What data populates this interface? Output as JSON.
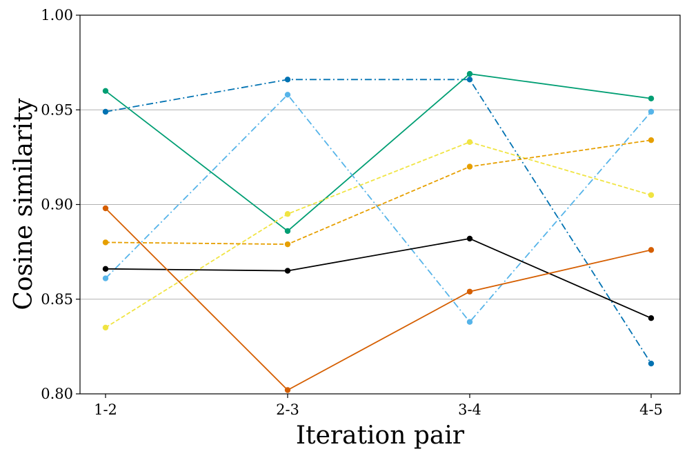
{
  "chart_data": {
    "type": "line",
    "title": "",
    "xlabel": "Iteration pair",
    "ylabel": "Cosine similarity",
    "categories": [
      "1-2",
      "2-3",
      "3-4",
      "4-5"
    ],
    "ylim": [
      0.8,
      1.0
    ],
    "yticks": [
      0.8,
      0.85,
      0.9,
      0.95,
      1.0
    ],
    "ytick_labels": [
      "0.80",
      "0.85",
      "0.90",
      "0.95",
      "1.00"
    ],
    "gridlines": [
      0.85,
      0.9,
      0.95
    ],
    "legend": "none",
    "series": [
      {
        "name": "series-dark-blue",
        "color": "#0072B2",
        "dash": "dashdot",
        "values": [
          0.949,
          0.966,
          0.966,
          0.816
        ]
      },
      {
        "name": "series-green",
        "color": "#009E73",
        "dash": "solid",
        "values": [
          0.96,
          0.886,
          0.969,
          0.956
        ]
      },
      {
        "name": "series-sky-blue",
        "color": "#56B4E9",
        "dash": "dashdot",
        "values": [
          0.861,
          0.958,
          0.838,
          0.949
        ]
      },
      {
        "name": "series-yellow",
        "color": "#F0E442",
        "dash": "dashed",
        "values": [
          0.835,
          0.895,
          0.933,
          0.905
        ]
      },
      {
        "name": "series-orange",
        "color": "#E69F00",
        "dash": "dashed",
        "values": [
          0.88,
          0.879,
          0.92,
          0.934
        ]
      },
      {
        "name": "series-black",
        "color": "#000000",
        "dash": "solid",
        "values": [
          0.866,
          0.865,
          0.882,
          0.84
        ]
      },
      {
        "name": "series-vermillion",
        "color": "#D55E00",
        "dash": "solid",
        "values": [
          0.898,
          0.802,
          0.854,
          0.876
        ]
      }
    ]
  }
}
